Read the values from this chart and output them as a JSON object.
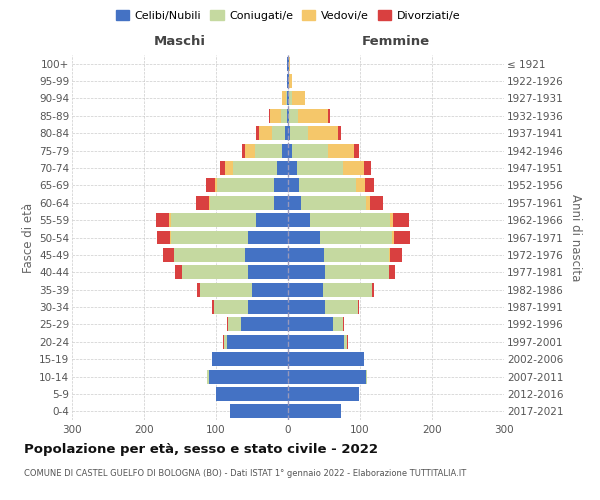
{
  "age_groups": [
    "0-4",
    "5-9",
    "10-14",
    "15-19",
    "20-24",
    "25-29",
    "30-34",
    "35-39",
    "40-44",
    "45-49",
    "50-54",
    "55-59",
    "60-64",
    "65-69",
    "70-74",
    "75-79",
    "80-84",
    "85-89",
    "90-94",
    "95-99",
    "100+"
  ],
  "birth_years": [
    "2017-2021",
    "2012-2016",
    "2007-2011",
    "2002-2006",
    "1997-2001",
    "1992-1996",
    "1987-1991",
    "1982-1986",
    "1977-1981",
    "1972-1976",
    "1967-1971",
    "1962-1966",
    "1957-1961",
    "1952-1956",
    "1947-1951",
    "1942-1946",
    "1937-1941",
    "1932-1936",
    "1927-1931",
    "1922-1926",
    "≤ 1921"
  ],
  "colors": {
    "celibi": "#4472C4",
    "coniugati": "#C5D9A0",
    "vedovi": "#F5C76A",
    "divorziati": "#D94040"
  },
  "m_cel": [
    80,
    100,
    110,
    105,
    85,
    65,
    55,
    50,
    55,
    60,
    55,
    45,
    20,
    20,
    15,
    8,
    4,
    2,
    1,
    1,
    1
  ],
  "m_con": [
    0,
    0,
    2,
    1,
    4,
    18,
    48,
    72,
    92,
    98,
    108,
    118,
    88,
    78,
    62,
    38,
    18,
    8,
    2,
    0,
    0
  ],
  "m_ved": [
    0,
    0,
    0,
    0,
    0,
    0,
    0,
    0,
    0,
    0,
    1,
    2,
    2,
    4,
    10,
    14,
    18,
    15,
    6,
    1,
    0
  ],
  "m_div": [
    0,
    0,
    0,
    0,
    1,
    2,
    2,
    4,
    10,
    15,
    18,
    18,
    18,
    12,
    8,
    4,
    4,
    2,
    0,
    0,
    0
  ],
  "f_cel": [
    73,
    98,
    108,
    105,
    78,
    62,
    52,
    48,
    52,
    50,
    45,
    30,
    18,
    15,
    12,
    6,
    3,
    2,
    1,
    1,
    1
  ],
  "f_con": [
    0,
    0,
    2,
    1,
    4,
    14,
    45,
    68,
    88,
    90,
    100,
    112,
    90,
    80,
    65,
    50,
    25,
    12,
    4,
    0,
    0
  ],
  "f_ved": [
    0,
    0,
    0,
    0,
    0,
    0,
    0,
    0,
    0,
    1,
    2,
    4,
    6,
    12,
    28,
    36,
    42,
    42,
    18,
    4,
    2
  ],
  "f_div": [
    0,
    0,
    0,
    0,
    1,
    2,
    2,
    4,
    8,
    18,
    22,
    22,
    18,
    12,
    10,
    6,
    4,
    2,
    0,
    0,
    0
  ],
  "xlim": 300,
  "title": "Popolazione per età, sesso e stato civile - 2022",
  "subtitle": "COMUNE DI CASTEL GUELFO DI BOLOGNA (BO) - Dati ISTAT 1° gennaio 2022 - Elaborazione TUTTITALIA.IT",
  "ylabel_left": "Fasce di età",
  "ylabel_right": "Anni di nascita",
  "label_maschi": "Maschi",
  "label_femmine": "Femmine",
  "legend_labels": [
    "Celibi/Nubili",
    "Coniugati/e",
    "Vedovi/e",
    "Divorziati/e"
  ],
  "bg_color": "#FFFFFF",
  "grid_color": "#CCCCCC"
}
